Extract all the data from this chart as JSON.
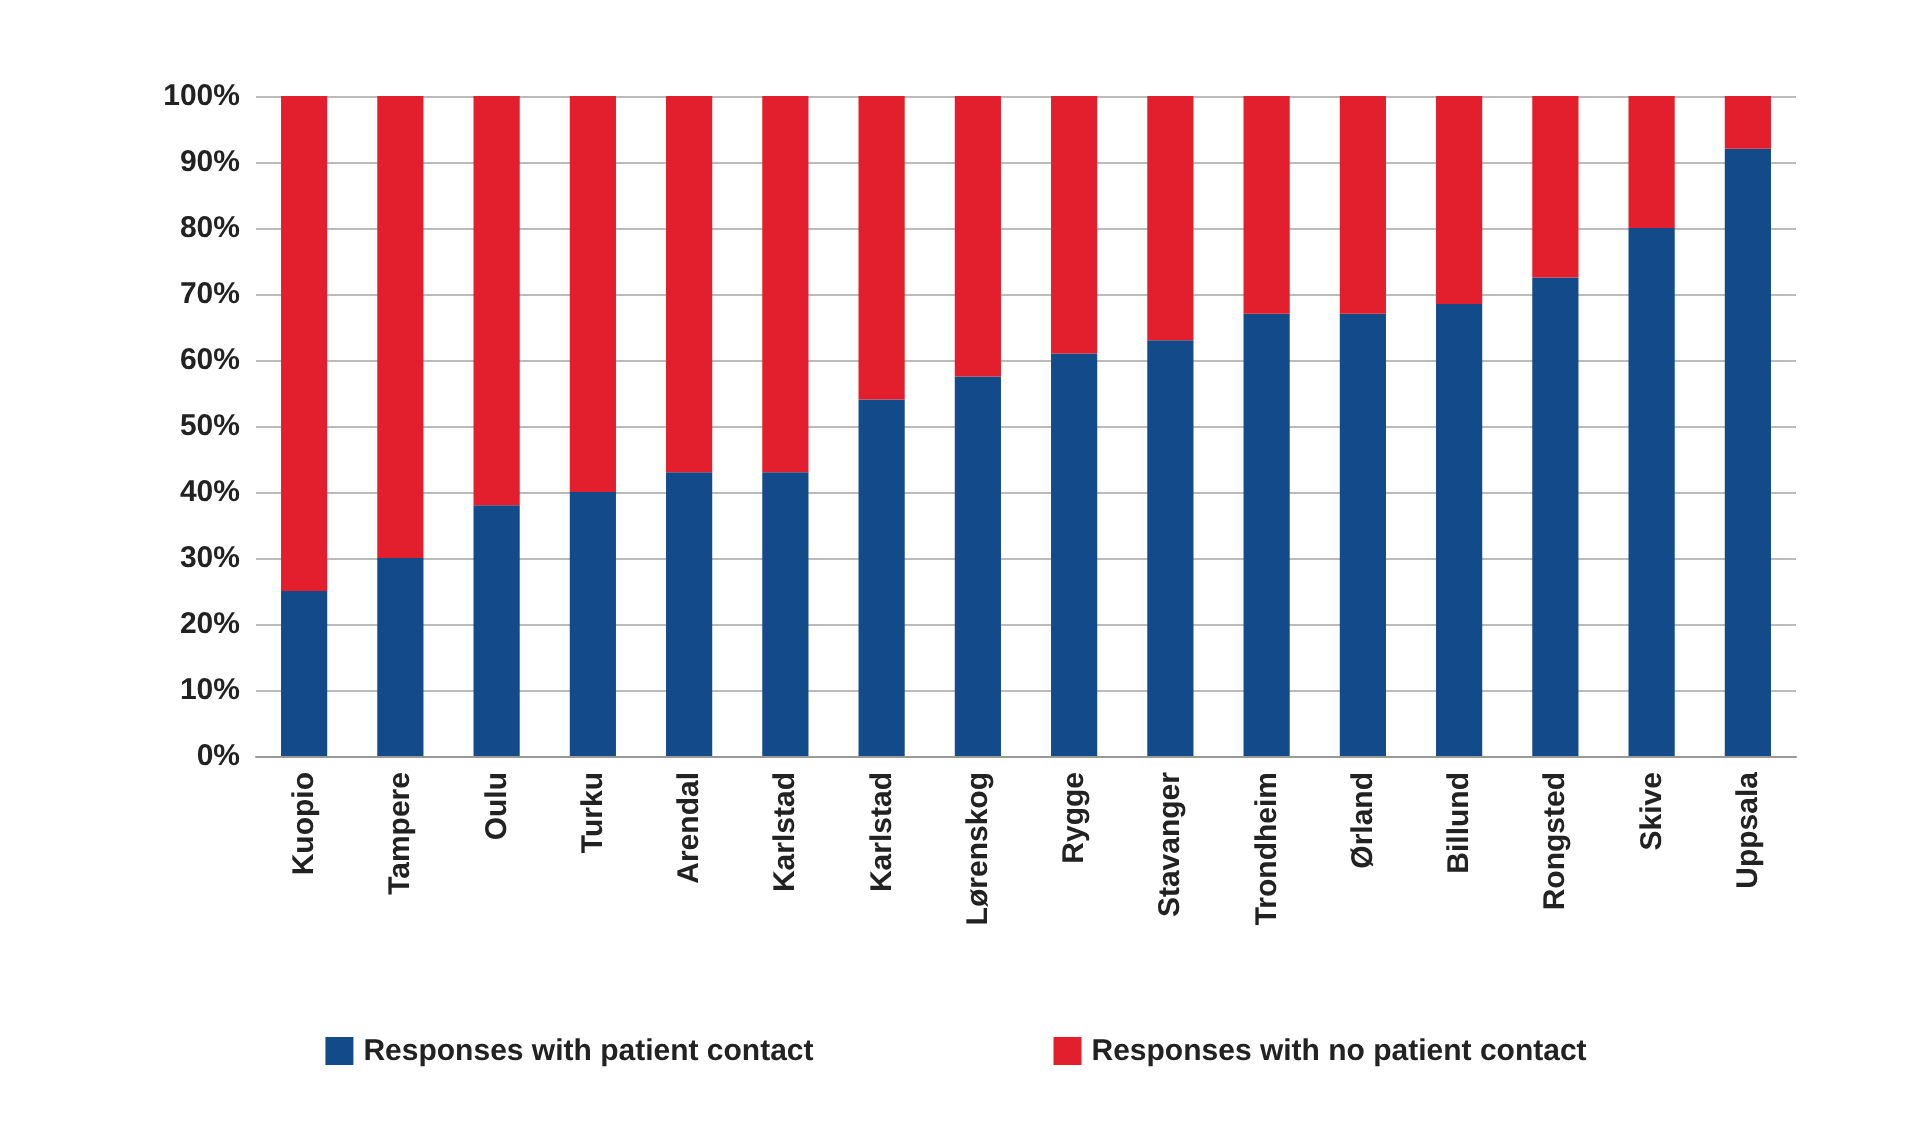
{
  "chart_data": {
    "type": "bar",
    "stacked": true,
    "categories": [
      "Kuopio",
      "Tampere",
      "Oulu",
      "Turku",
      "Arendal",
      "Karlstad",
      "Karlstad",
      "Lørenskog",
      "Rygge",
      "Stavanger",
      "Trondheim",
      "Ørland",
      "Billund",
      "Rongsted",
      "Skive",
      "Uppsala"
    ],
    "series": [
      {
        "name": "Responses with patient contact",
        "color": "#134b8a",
        "values": [
          25,
          30,
          38,
          40,
          43,
          43,
          54,
          57.5,
          61,
          63,
          67,
          67,
          68.5,
          72.5,
          80,
          92
        ]
      },
      {
        "name": "Responses with no patient contact",
        "color": "#e31e2d",
        "values": [
          75,
          70,
          62,
          60,
          57,
          57,
          46,
          42.5,
          39,
          37,
          33,
          33,
          31.5,
          27.5,
          20,
          8
        ]
      }
    ],
    "ylim": [
      0,
      100
    ],
    "yticks": [
      {
        "value": 0,
        "label": "0%"
      },
      {
        "value": 10,
        "label": "10%"
      },
      {
        "value": 20,
        "label": "20%"
      },
      {
        "value": 30,
        "label": "30%"
      },
      {
        "value": 40,
        "label": "40%"
      },
      {
        "value": 50,
        "label": "50%"
      },
      {
        "value": 60,
        "label": "60%"
      },
      {
        "value": 70,
        "label": "70%"
      },
      {
        "value": 80,
        "label": "80%"
      },
      {
        "value": 90,
        "label": "90%"
      },
      {
        "value": 100,
        "label": "100%"
      }
    ],
    "grid": "y",
    "legend": "bottom"
  }
}
